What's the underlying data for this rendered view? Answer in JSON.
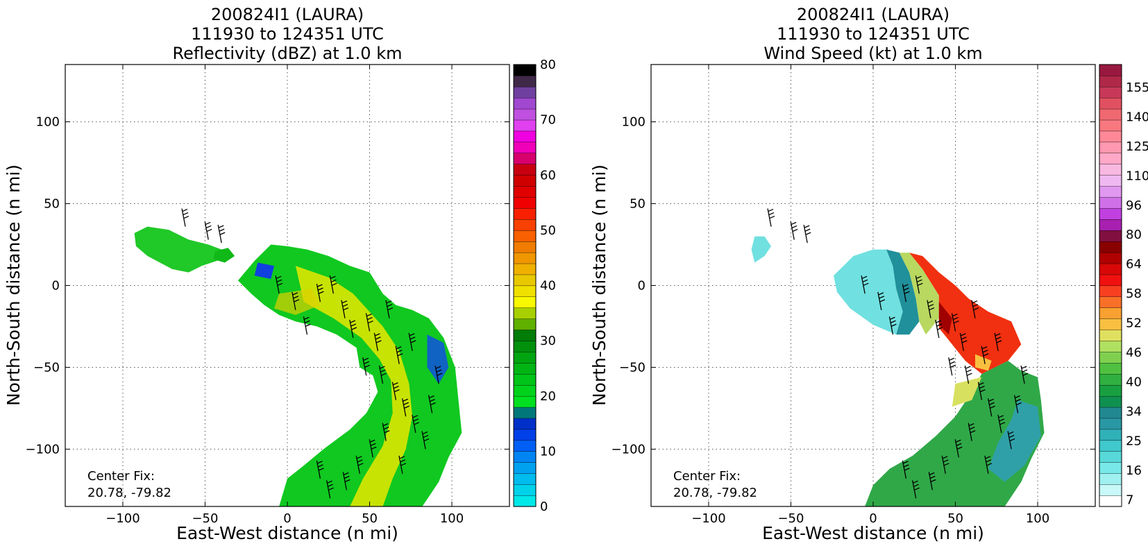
{
  "chart_data": [
    {
      "type": "heatmap",
      "title": [
        "200824I1 (LAURA)",
        "111930 to 124351 UTC",
        "Reflectivity (dBZ) at 1.0 km"
      ],
      "xlabel": "East-West distance (n mi)",
      "ylabel": "North-South distance (n mi)",
      "xlim": [
        -135,
        135
      ],
      "ylim": [
        -135,
        135
      ],
      "xticks": [
        -100,
        -50,
        0,
        50,
        100
      ],
      "yticks": [
        -100,
        -50,
        0,
        50,
        100
      ],
      "xtick_labels": [
        "−100",
        "−50",
        "0",
        "50",
        "100"
      ],
      "ytick_labels": [
        "−100",
        "−50",
        "0",
        "50",
        "100"
      ],
      "grid": true,
      "annotation": [
        "Center Fix:",
        "20.78, -79.82"
      ],
      "colorbar": {
        "ticks": [
          0,
          10,
          20,
          30,
          40,
          50,
          60,
          70,
          80
        ],
        "tick_labels": [
          "0",
          "10",
          "20",
          "30",
          "40",
          "50",
          "60",
          "70",
          "80"
        ],
        "colors": [
          "#00e8e8",
          "#00d2ea",
          "#00bbed",
          "#00a2f0",
          "#0085f3",
          "#0060f5",
          "#0040e8",
          "#0030c8",
          "#00787a",
          "#00e020",
          "#00d21c",
          "#00c418",
          "#00b414",
          "#00a410",
          "#00900c",
          "#007c08",
          "#60b000",
          "#a8d000",
          "#f8f800",
          "#f0e000",
          "#e8c800",
          "#f0b000",
          "#f09600",
          "#f07c00",
          "#f86000",
          "#f84000",
          "#f82000",
          "#f00000",
          "#e00000",
          "#d00000",
          "#c80010",
          "#d8006c",
          "#f000b8",
          "#f000e0",
          "#e040f0",
          "#c050e0",
          "#a048d0",
          "#7040a0",
          "#402848",
          "#000000"
        ]
      },
      "field": "reflectivity"
    },
    {
      "type": "heatmap",
      "title": [
        "200824I1 (LAURA)",
        "111930 to 124351 UTC",
        "Wind Speed (kt) at 1.0 km"
      ],
      "xlabel": "East-West distance (n mi)",
      "ylabel": "North-South distance (n mi)",
      "xlim": [
        -135,
        135
      ],
      "ylim": [
        -135,
        135
      ],
      "xticks": [
        -100,
        -50,
        0,
        50,
        100
      ],
      "yticks": [
        -100,
        -50,
        0,
        50,
        100
      ],
      "xtick_labels": [
        "−100",
        "−50",
        "0",
        "50",
        "100"
      ],
      "ytick_labels": [
        "−100",
        "−50",
        "0",
        "50",
        "100"
      ],
      "grid": true,
      "annotation": [
        "Center Fix:",
        "20.78, -79.82"
      ],
      "colorbar": {
        "tick_labels": [
          "7",
          "16",
          "25",
          "34",
          "40",
          "46",
          "52",
          "58",
          "64",
          "80",
          "96",
          "110",
          "125",
          "140",
          "155"
        ],
        "colors": [
          "#ffffff",
          "#c8f8f8",
          "#a0f0f0",
          "#78e8e8",
          "#58d8d8",
          "#40c8cc",
          "#30b0b8",
          "#2898a4",
          "#208890",
          "#109050",
          "#18a040",
          "#30b040",
          "#50c040",
          "#80d050",
          "#b0e060",
          "#e0e060",
          "#f8c040",
          "#f8a030",
          "#f87028",
          "#f84020",
          "#f01010",
          "#d80808",
          "#b00000",
          "#880000",
          "#801040",
          "#a820b0",
          "#c040e0",
          "#d070e8",
          "#e098f0",
          "#f0b8f0",
          "#f8b8e0",
          "#ffa8c8",
          "#ff98b0",
          "#ff8898",
          "#f87880",
          "#f06870",
          "#e05060",
          "#c83858",
          "#b02848",
          "#981840"
        ]
      },
      "field": "wind"
    }
  ]
}
